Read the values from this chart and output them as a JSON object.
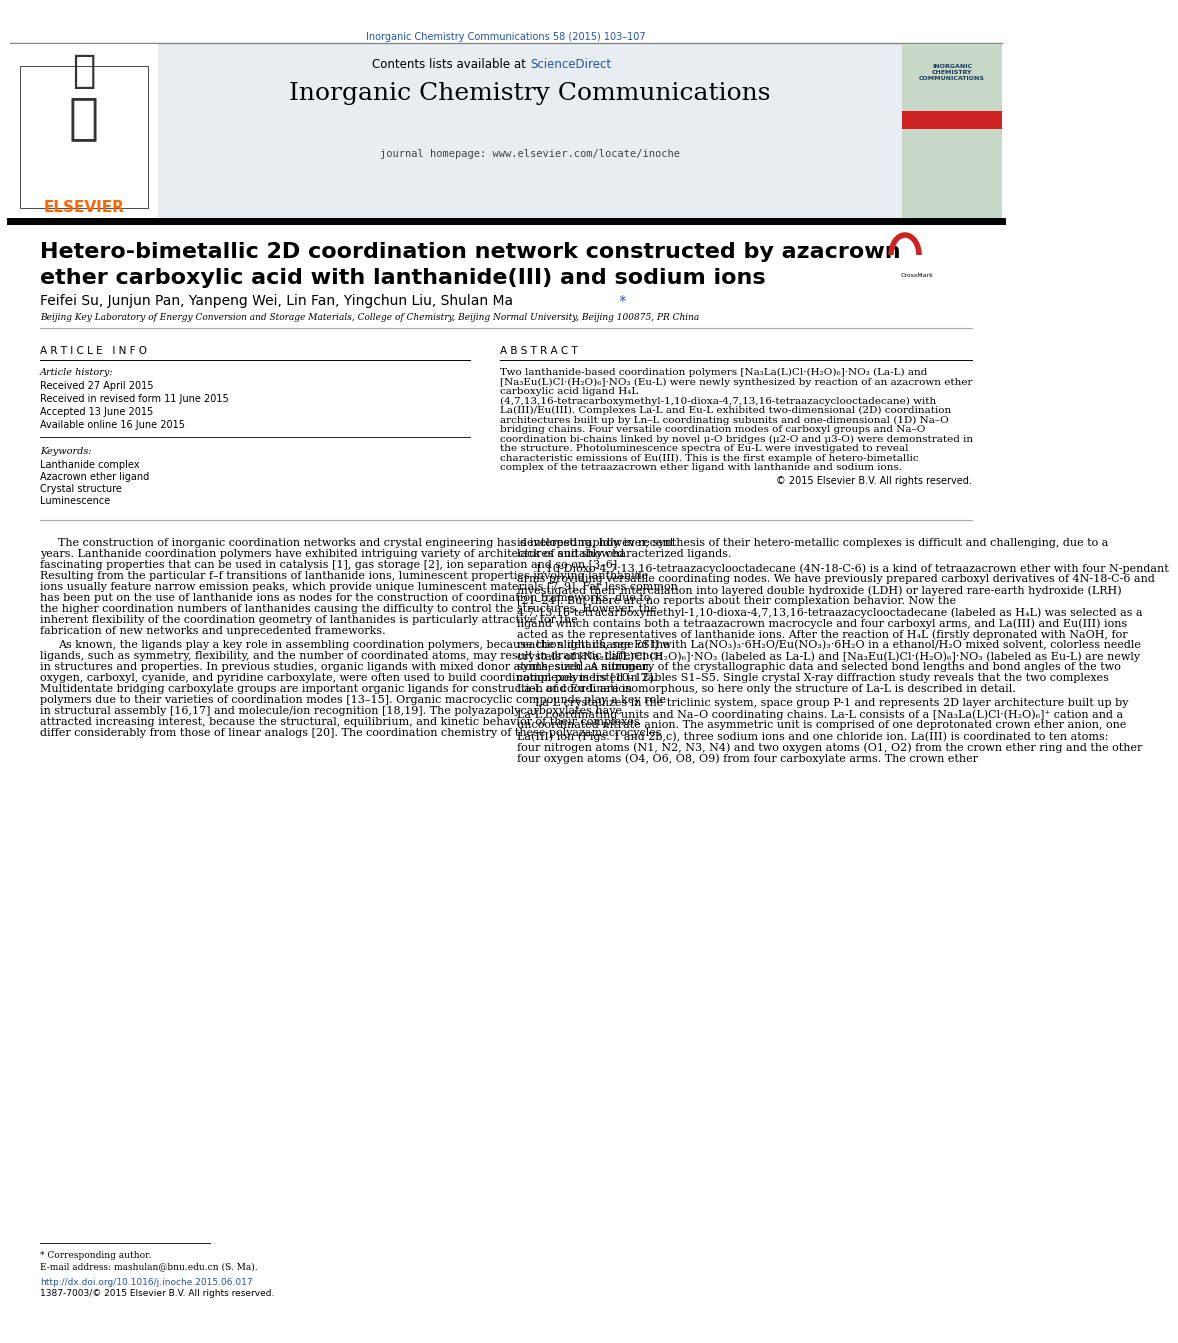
{
  "page_width": 9.92,
  "page_height": 13.23,
  "bg_color": "#ffffff",
  "top_journal_ref": "Inorganic Chemistry Communications 58 (2015) 103–107",
  "journal_title": "Inorganic Chemistry Communications",
  "journal_url": "journal homepage: www.elsevier.com/locate/inoche",
  "contents_text": "Contents lists available at ",
  "sciencedirect_text": "ScienceDirect",
  "article_title_line1": "Hetero-bimetallic 2D coordination network constructed by azacrown",
  "article_title_line2": "ether carboxylic acid with lanthanide(III) and sodium ions",
  "authors": "Feifei Su, Junjun Pan, Yanpeng Wei, Lin Fan, Yingchun Liu, Shulan Ma",
  "affiliation": "Beijing Key Laboratory of Energy Conversion and Storage Materials, College of Chemistry, Beijing Normal University, Beijing 100875, PR China",
  "article_info_header": "A R T I C L E   I N F O",
  "abstract_header": "A B S T R A C T",
  "article_history_header": "Article history:",
  "article_history": [
    "Received 27 April 2015",
    "Received in revised form 11 June 2015",
    "Accepted 13 June 2015",
    "Available online 16 June 2015"
  ],
  "keywords_header": "Keywords:",
  "keywords": [
    "Lanthanide complex",
    "Azacrown ether ligand",
    "Crystal structure",
    "Luminescence"
  ],
  "abstract_text": "Two lanthanide-based coordination polymers [Na₃La(L)Cl·(H₂O)₆]·NO₃ (La-L) and [Na₃Eu(L)Cl·(H₂O)₆]·NO₃ (Eu-L) were newly synthesized by reaction of an azacrown ether carboxylic acid ligand H₄L (4,7,13,16-tetracarboxymethyl-1,10-dioxa-4,7,13,16-tetraazacyclooctadecane) with La(III)/Eu(III). Complexes La-L and Eu-L exhibited two-dimensional (2D) coordination architectures built up by Ln–L coordinating subunits and one-dimensional (1D) Na–O bridging chains. Four versatile coordination modes of carboxyl groups and Na–O coordination bi-chains linked by novel μ-O bridges (μ2-O and μ3-O) were demonstrated in the structure. Photoluminescence spectra of Eu-L were investigated to reveal characteristic emissions of Eu(III). This is the first example of hetero-bimetallic complex of the tetraazacrown ether ligand with lanthanide and sodium ions.",
  "copyright": "© 2015 Elsevier B.V. All rights reserved.",
  "body_col1_para1": "The construction of inorganic coordination networks and crystal engineering has developed rapidly in recent years. Lanthanide coordination polymers have exhibited intriguing variety of architectures and showed fascinating properties that can be used in catalysis [1], gas storage [2], ion separation and so on [3–6]. Resulting from the particular f–f transitions of lanthanide ions, luminescent properties involving lanthanide ions usually feature narrow emission peaks, which provide unique luminescent materials [7–9]. Far less common has been put on the use of lanthanide ions as nodes for the construction of coordination frameworks, due to the higher coordination numbers of lanthanides causing the difficulty to control the structures. However, the inherent flexibility of the coordination geometry of lanthanides is particularly attractive for the fabrication of new networks and unprecedented frameworks.",
  "body_col1_para2": "As known, the ligands play a key role in assembling coordination polymers, because the slight change of the ligands, such as symmetry, flexibility, and the number of coordinated atoms, may result in dramatic difference in structures and properties. In previous studies, organic ligands with mixed donor atoms, such as nitrogen, oxygen, carboxyl, cyanide, and pyridine carboxylate, were often used to build coordination polymers [10–12]. Multidentate bridging carboxylate groups are important organic ligands for construction of coordination polymers due to their varieties of coordination modes [13–15]. Organic macrocyclic compounds play a key role in structural assembly [16,17] and molecule/ion recognition [18,19]. The polyazapolycarboxylates have attracted increasing interest, because the structural, equilibrium, and kinetic behavior of their complexes differ considerably from those of linear analogs [20]. The coordination chemistry of these polyazamacrocycles",
  "body_col2_para1": "is interesting, however, synthesis of their hetero-metallic complexes is difficult and challenging, due to a lack of suitably characterized ligands.",
  "body_col2_para2": "1,10-Dioxo-4,7,13,16-tetraazacyclooctadecane (4N-18-C-6) is a kind of tetraazacrown ether with four N-pendant arms providing versatile coordinating nodes. We have previously prepared carboxyl derivatives of 4N-18-C-6 and investigated their intercalation into layered double hydroxide (LDH) or layered rare-earth hydroxide (LRH) [21–24]. But there are no reports about their complexation behavior. Now the 4,7,13,16-tetracarboxymethyl-1,10-dioxa-4,7,13,16-tetraazacyclooctadecane (labeled as H₄L) was selected as a ligand which contains both a tetraazacrown macrocycle and four carboxyl arms, and La(III) and Eu(III) ions acted as the representatives of lanthanide ions. After the reaction of H₄L (firstly depronated with NaOH, for reaction details, see ESI) with La(NO₃)₃·6H₂O/Eu(NO₃)₃·6H₂O in a ethanol/H₂O mixed solvent, colorless needle crystals of [Na₃La(L)Cl·(H₂O)₆]·NO₃ (labeled as La-L) and [Na₃Eu(L)Cl·(H₂O)₆]·NO₃ (labeled as Eu-L) are newly synthesized. A summary of the crystallographic data and selected bond lengths and bond angles of the two complexes is listed in Tables S1–S5. Single crystal X-ray diffraction study reveals that the two complexes La-L and Eu-L are isomorphous, so here only the structure of La-L is described in detail.",
  "body_col2_para3": "La-L crystallizes in the triclinic system, space group P-1 and represents 2D layer architecture built up by La-L coordinating units and Na–O coordinating chains. La-L consists of a [Na₃La(L)Cl·(H₂O)₆]⁺ cation and a uncoordinated nitrate anion. The asymmetric unit is comprised of one deprotonated crown ether anion, one La(III) ion (Figs. 1 and 2b,c), three sodium ions and one chloride ion. La(III) is coordinated to ten atoms: four nitrogen atoms (N1, N2, N3, N4) and two oxygen atoms (O1, O2) from the crown ether ring and the other four oxygen atoms (O4, O6, O8, O9) from four carboxylate arms. The crown ether",
  "footnote_star": "* Corresponding author.",
  "footnote_email": "E-mail address: mashulan@bnu.edu.cn (S. Ma).",
  "footnote_doi": "http://dx.doi.org/10.1016/j.inoche.2015.06.017",
  "footnote_issn": "1387-7003/© 2015 Elsevier B.V. All rights reserved.",
  "elsevier_color": "#FF6600",
  "sciencedirect_color": "#2255AA",
  "link_color": "#2255AA",
  "header_bg": "#E8EDF2",
  "divider_color": "#999999"
}
